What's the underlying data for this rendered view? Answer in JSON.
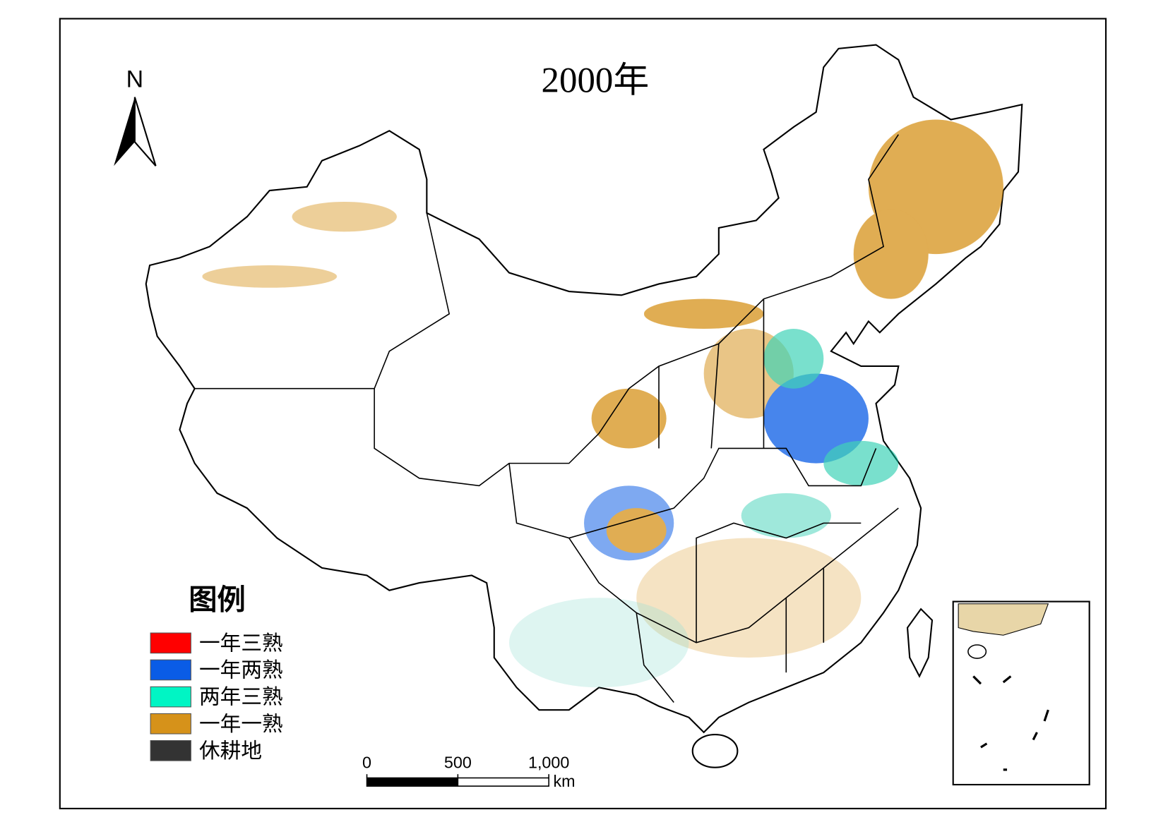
{
  "map": {
    "title": "2000年",
    "north_arrow": "N",
    "legend": {
      "title": "图例",
      "items": [
        {
          "label": "一年三熟",
          "color": "#ff0000"
        },
        {
          "label": "一年两熟",
          "color": "#0a5ce6"
        },
        {
          "label": "两年三熟",
          "color": "#00f5c4"
        },
        {
          "label": "一年一熟",
          "color": "#d6921a"
        },
        {
          "label": "休耕地",
          "color": "#333333"
        }
      ]
    },
    "scale_bar": {
      "ticks": [
        0,
        500,
        {
          "value": 1000,
          "label": "1,000"
        }
      ],
      "unit": "km"
    }
  }
}
